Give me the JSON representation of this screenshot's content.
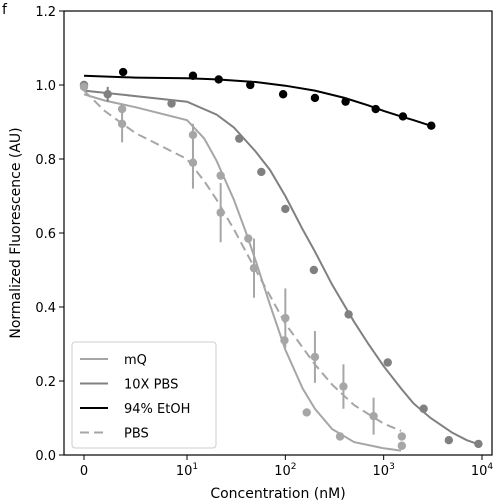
{
  "chart_data": {
    "type": "scatter",
    "panel_label": "f",
    "xlabel": "Concentration (nM)",
    "ylabel": "Normalized Fluorescence (AU)",
    "xscale": "symlog",
    "xlim": [
      -1,
      10000
    ],
    "ylim": [
      0.0,
      1.2
    ],
    "x_tick_labels": [
      {
        "value": 0,
        "base": "0",
        "exp": ""
      },
      {
        "value": 10,
        "base": "10",
        "exp": "1"
      },
      {
        "value": 100,
        "base": "10",
        "exp": "2"
      },
      {
        "value": 1000,
        "base": "10",
        "exp": "3"
      },
      {
        "value": 10000,
        "base": "10",
        "exp": "4"
      }
    ],
    "y_ticks": [
      0.0,
      0.2,
      0.4,
      0.6,
      0.8,
      1.0,
      1.2
    ],
    "y_tick_labels": [
      "0.0",
      "0.2",
      "0.4",
      "0.6",
      "0.8",
      "1.0",
      "1.2"
    ],
    "legend_position": "lower-left",
    "series": [
      {
        "name": "mQ",
        "color": "#a6a6a6",
        "dash": "solid",
        "points": [
          {
            "x": 0,
            "y": 1.0,
            "err": 0
          },
          {
            "x": 3.7,
            "y": 0.935,
            "err": 0
          },
          {
            "x": 11.5,
            "y": 0.865,
            "err": 0.03
          },
          {
            "x": 22,
            "y": 0.755,
            "err": 0
          },
          {
            "x": 42,
            "y": 0.585,
            "err": 0
          },
          {
            "x": 98,
            "y": 0.31,
            "err": 0
          },
          {
            "x": 165,
            "y": 0.115,
            "err": 0
          },
          {
            "x": 360,
            "y": 0.05,
            "err": 0
          },
          {
            "x": 1530,
            "y": 0.025,
            "err": 0
          }
        ],
        "curve": [
          [
            0,
            0.975
          ],
          [
            2,
            0.958
          ],
          [
            5,
            0.94
          ],
          [
            10,
            0.905
          ],
          [
            15,
            0.855
          ],
          [
            20,
            0.795
          ],
          [
            30,
            0.69
          ],
          [
            40,
            0.6
          ],
          [
            50,
            0.525
          ],
          [
            70,
            0.405
          ],
          [
            100,
            0.285
          ],
          [
            150,
            0.18
          ],
          [
            200,
            0.125
          ],
          [
            300,
            0.07
          ],
          [
            500,
            0.035
          ],
          [
            1000,
            0.018
          ],
          [
            1500,
            0.012
          ]
        ]
      },
      {
        "name": "10X PBS",
        "color": "#808080",
        "dash": "solid",
        "points": [
          {
            "x": 0,
            "y": 1.0,
            "err": 0
          },
          {
            "x": 2.3,
            "y": 0.975,
            "err": 0.02
          },
          {
            "x": 8.5,
            "y": 0.95,
            "err": 0
          },
          {
            "x": 34,
            "y": 0.855,
            "err": 0
          },
          {
            "x": 57,
            "y": 0.765,
            "err": 0
          },
          {
            "x": 100,
            "y": 0.665,
            "err": 0
          },
          {
            "x": 195,
            "y": 0.5,
            "err": 0
          },
          {
            "x": 440,
            "y": 0.38,
            "err": 0
          },
          {
            "x": 1100,
            "y": 0.25,
            "err": 0
          },
          {
            "x": 2550,
            "y": 0.125,
            "err": 0
          },
          {
            "x": 4600,
            "y": 0.04,
            "err": 0
          },
          {
            "x": 9200,
            "y": 0.03,
            "err": 0
          }
        ],
        "curve": [
          [
            0,
            0.985
          ],
          [
            5,
            0.97
          ],
          [
            10,
            0.955
          ],
          [
            20,
            0.92
          ],
          [
            30,
            0.885
          ],
          [
            50,
            0.82
          ],
          [
            70,
            0.77
          ],
          [
            100,
            0.7
          ],
          [
            150,
            0.61
          ],
          [
            200,
            0.55
          ],
          [
            300,
            0.46
          ],
          [
            500,
            0.36
          ],
          [
            700,
            0.3
          ],
          [
            1000,
            0.24
          ],
          [
            1500,
            0.18
          ],
          [
            2000,
            0.14
          ],
          [
            3000,
            0.1
          ],
          [
            5000,
            0.06
          ],
          [
            7000,
            0.04
          ],
          [
            9000,
            0.03
          ]
        ]
      },
      {
        "name": "94% EtOH",
        "color": "#000000",
        "dash": "solid",
        "points": [
          {
            "x": 3.8,
            "y": 1.035,
            "err": 0
          },
          {
            "x": 11.5,
            "y": 1.025,
            "err": 0
          },
          {
            "x": 21,
            "y": 1.015,
            "err": 0
          },
          {
            "x": 44,
            "y": 1.0,
            "err": 0
          },
          {
            "x": 95,
            "y": 0.975,
            "err": 0
          },
          {
            "x": 200,
            "y": 0.965,
            "err": 0
          },
          {
            "x": 410,
            "y": 0.955,
            "err": 0
          },
          {
            "x": 830,
            "y": 0.935,
            "err": 0
          },
          {
            "x": 1570,
            "y": 0.915,
            "err": 0
          },
          {
            "x": 3050,
            "y": 0.89,
            "err": 0
          }
        ],
        "curve": [
          [
            0,
            1.025
          ],
          [
            5,
            1.02
          ],
          [
            10,
            1.018
          ],
          [
            20,
            1.015
          ],
          [
            50,
            1.008
          ],
          [
            100,
            0.998
          ],
          [
            200,
            0.985
          ],
          [
            400,
            0.965
          ],
          [
            700,
            0.945
          ],
          [
            1000,
            0.93
          ],
          [
            1500,
            0.915
          ],
          [
            2000,
            0.905
          ],
          [
            3000,
            0.89
          ]
        ]
      },
      {
        "name": "PBS",
        "color": "#a6a6a6",
        "dash": "dashed",
        "points": [
          {
            "x": 0,
            "y": 0.995,
            "err": 0
          },
          {
            "x": 3.7,
            "y": 0.895,
            "err": 0.05
          },
          {
            "x": 11.5,
            "y": 0.79,
            "err": 0.07
          },
          {
            "x": 22,
            "y": 0.655,
            "err": 0.08
          },
          {
            "x": 48,
            "y": 0.505,
            "err": 0.08
          },
          {
            "x": 100,
            "y": 0.37,
            "err": 0.08
          },
          {
            "x": 200,
            "y": 0.265,
            "err": 0.07
          },
          {
            "x": 390,
            "y": 0.185,
            "err": 0.06
          },
          {
            "x": 790,
            "y": 0.105,
            "err": 0.05
          },
          {
            "x": 1530,
            "y": 0.05,
            "err": 0
          }
        ],
        "curve": [
          [
            0,
            0.985
          ],
          [
            2,
            0.93
          ],
          [
            5,
            0.87
          ],
          [
            10,
            0.8
          ],
          [
            15,
            0.74
          ],
          [
            20,
            0.69
          ],
          [
            30,
            0.61
          ],
          [
            50,
            0.5
          ],
          [
            70,
            0.43
          ],
          [
            100,
            0.355
          ],
          [
            200,
            0.245
          ],
          [
            300,
            0.19
          ],
          [
            500,
            0.135
          ],
          [
            1000,
            0.085
          ],
          [
            1500,
            0.065
          ]
        ]
      }
    ]
  }
}
